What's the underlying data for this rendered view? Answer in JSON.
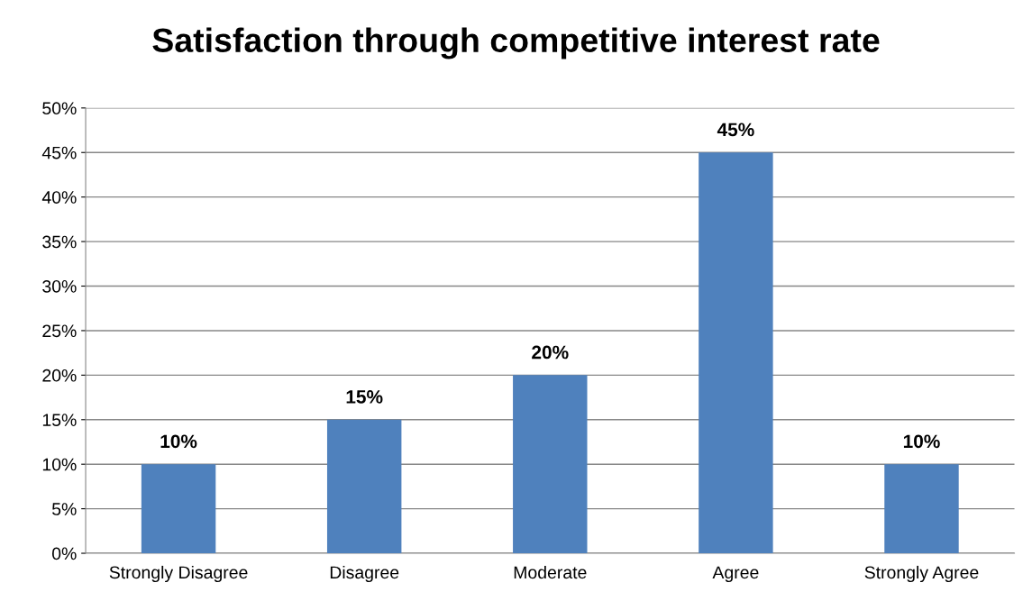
{
  "chart_data": {
    "type": "bar",
    "title": "Satisfaction through competitive interest rate",
    "categories": [
      "Strongly Disagree",
      "Disagree",
      "Moderate",
      "Agree",
      "Strongly Agree"
    ],
    "values": [
      10,
      15,
      20,
      45,
      10
    ],
    "value_labels": [
      "10%",
      "15%",
      "20%",
      "45%",
      "10%"
    ],
    "color": "#4f81bd",
    "ylim": [
      0,
      50
    ],
    "yticks": [
      {
        "value": 0,
        "label": "0%"
      },
      {
        "value": 5,
        "label": "5%"
      },
      {
        "value": 10,
        "label": "10%"
      },
      {
        "value": 15,
        "label": "15%"
      },
      {
        "value": 20,
        "label": "20%"
      },
      {
        "value": 25,
        "label": "25%"
      },
      {
        "value": 30,
        "label": "30%"
      },
      {
        "value": 35,
        "label": "35%"
      },
      {
        "value": 40,
        "label": "40%"
      },
      {
        "value": 45,
        "label": "45%"
      },
      {
        "value": 50,
        "label": "50%"
      }
    ],
    "grid": "y",
    "legend": false
  }
}
